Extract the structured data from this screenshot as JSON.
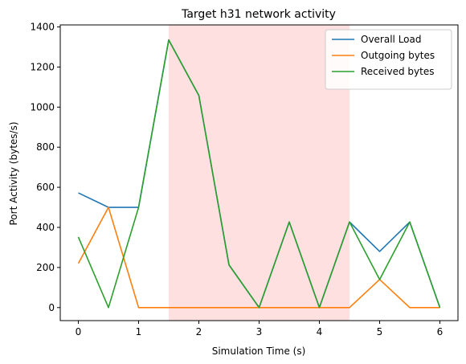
{
  "chart_data": {
    "type": "line",
    "title": "Target h31 network activity",
    "xlabel": "Simulation Time (s)",
    "ylabel": "Port Activity (bytes/s)",
    "xlim": [
      -0.3,
      6.3
    ],
    "ylim": [
      -65,
      1410
    ],
    "xticks": [
      0,
      1,
      2,
      3,
      4,
      5,
      6
    ],
    "yticks": [
      0,
      200,
      400,
      600,
      800,
      1000,
      1200,
      1400
    ],
    "grid": false,
    "legend_position": "top-right",
    "shaded_region": {
      "x_start": 1.5,
      "x_end": 4.5,
      "color": "#ffe0e0"
    },
    "x": [
      0,
      0.5,
      1,
      1.5,
      2,
      2.5,
      3,
      3.5,
      4,
      4.5,
      5,
      5.5,
      6
    ],
    "series": [
      {
        "name": "Overall Load",
        "color": "#1f77b4",
        "values": [
          572,
          500,
          500,
          1335,
          1058,
          213,
          0,
          427,
          0,
          427,
          280,
          427,
          0
        ]
      },
      {
        "name": "Outgoing bytes",
        "color": "#ff7f0e",
        "values": [
          220,
          500,
          0,
          0,
          0,
          0,
          0,
          0,
          0,
          0,
          140,
          0,
          0
        ]
      },
      {
        "name": "Received bytes",
        "color": "#2ca02c",
        "values": [
          352,
          0,
          500,
          1335,
          1058,
          213,
          0,
          427,
          0,
          427,
          140,
          427,
          0
        ]
      }
    ]
  }
}
